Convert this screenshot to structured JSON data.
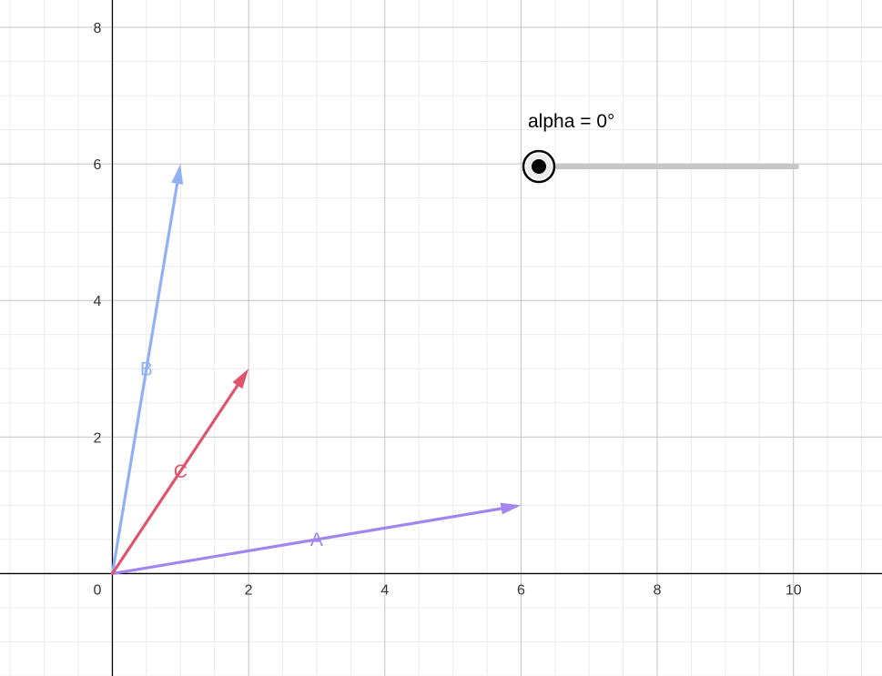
{
  "slider": {
    "label": "alpha = 0°",
    "value_deg": 0
  },
  "vectors": [
    {
      "name": "A",
      "from": [
        0,
        0
      ],
      "to": [
        6,
        1
      ],
      "color": "#A285F0"
    },
    {
      "name": "B",
      "from": [
        0,
        0
      ],
      "to": [
        1,
        6
      ],
      "color": "#92B1F5"
    },
    {
      "name": "C",
      "from": [
        0,
        0
      ],
      "to": [
        2,
        3
      ],
      "color": "#E0546B"
    }
  ],
  "axes": {
    "x_range": [
      -1.65,
      11.3
    ],
    "y_range": [
      -1.5,
      8.4
    ],
    "minor_step": 0.5,
    "major_step": 2,
    "x_ticks": [
      "0",
      "2",
      "4",
      "6",
      "8",
      "10"
    ],
    "y_ticks": [
      "2",
      "4",
      "6",
      "8"
    ]
  },
  "colors": {
    "axis": "#000000",
    "grid_major": "#c4c4c4",
    "grid_minor": "#ececec",
    "slider_track": "#c6c6c6",
    "slider_knob": "#000000"
  }
}
